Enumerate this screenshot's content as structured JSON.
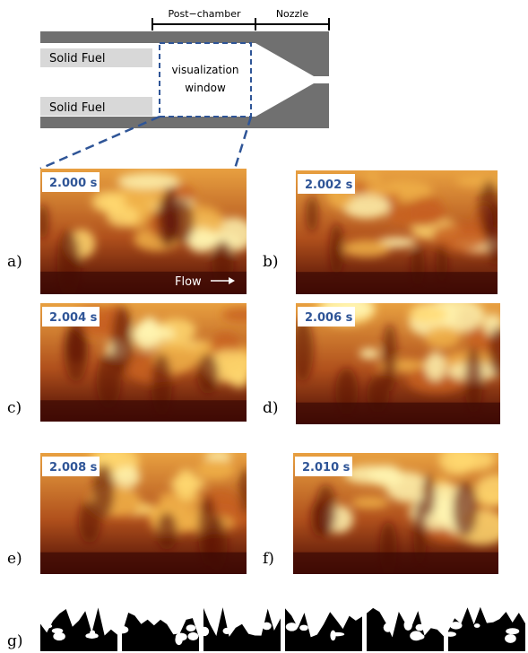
{
  "diagram": {
    "post_chamber": "Post−chamber",
    "nozzle": "Nozzle",
    "solid_fuel_top": "Solid Fuel",
    "solid_fuel_bottom": "Solid Fuel",
    "window_line1": "visualization",
    "window_line2": "window"
  },
  "panels": [
    {
      "label": "a)",
      "time": "2.000 s"
    },
    {
      "label": "b)",
      "time": "2.002 s"
    },
    {
      "label": "c)",
      "time": "2.004 s"
    },
    {
      "label": "d)",
      "time": "2.006 s"
    },
    {
      "label": "e)",
      "time": "2.008 s"
    },
    {
      "label": "f)",
      "time": "2.010 s"
    }
  ],
  "flow_label": "Flow",
  "binary_label": "g)"
}
